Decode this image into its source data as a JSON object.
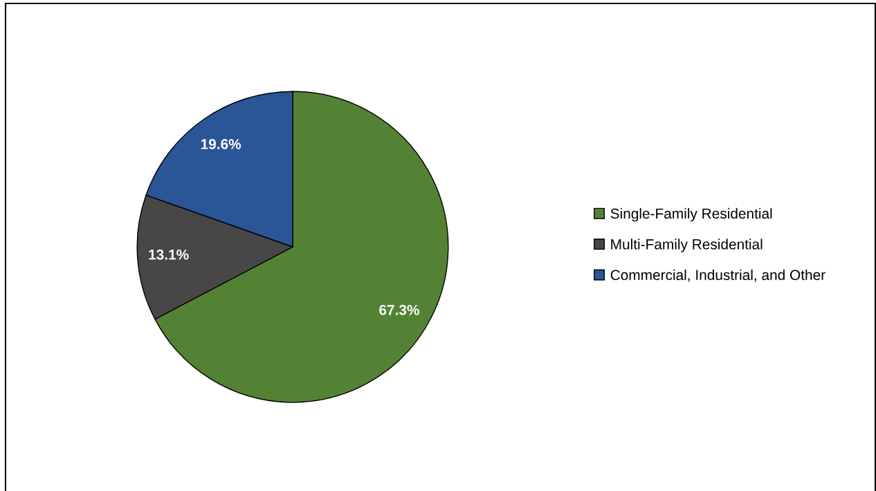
{
  "chart_data": {
    "type": "pie",
    "categories": [
      "Single-Family Residential",
      "Multi-Family Residential",
      "Commercial, Industrial, and Other"
    ],
    "values": [
      67.3,
      13.1,
      19.6
    ],
    "colors": [
      "#548235",
      "#474747",
      "#2a5597"
    ],
    "value_labels": [
      "67.3%",
      "13.1%",
      "19.6%"
    ],
    "legend": "right"
  }
}
